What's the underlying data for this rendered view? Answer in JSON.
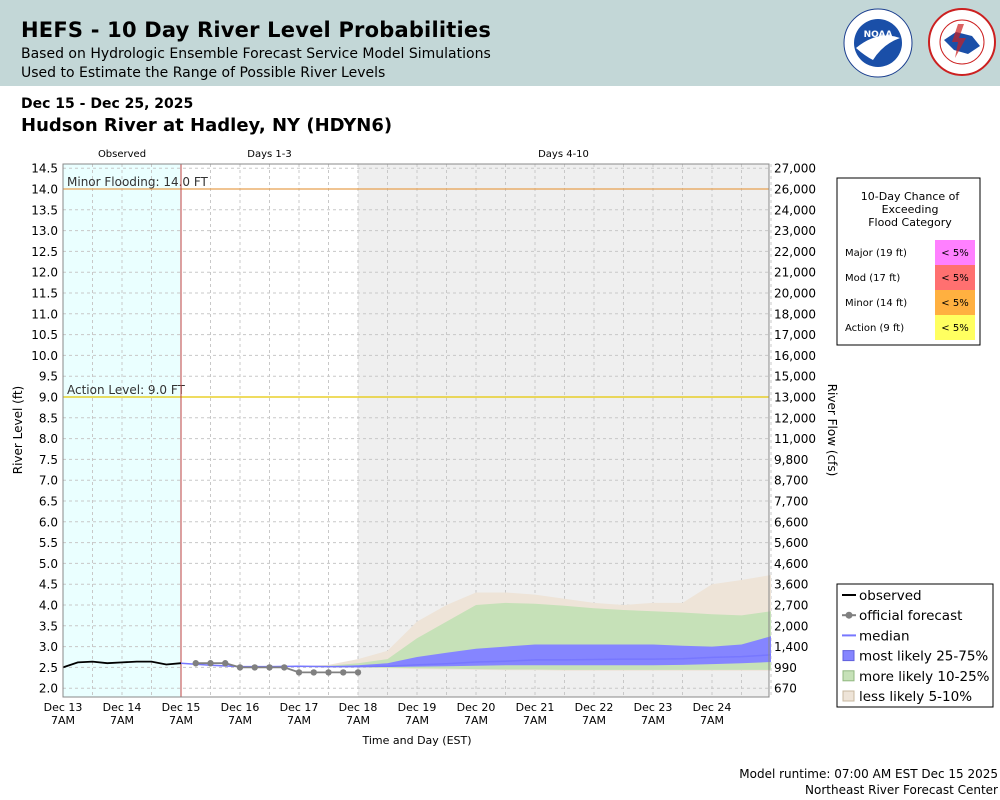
{
  "header": {
    "title": "HEFS - 10 Day River Level Probabilities",
    "subtitle1": "Based on Hydrologic Ensemble Forecast Service Model Simulations",
    "subtitle2": "Used to Estimate the Range of Possible River Levels",
    "logos": [
      "noaa-logo",
      "nws-logo"
    ]
  },
  "date_range": "Dec 15 - Dec 25, 2025",
  "station": "Hudson River at Hadley, NY (HDYN6)",
  "footer": {
    "runtime": "Model runtime: 07:00 AM EST Dec 15 2025",
    "center": "Northeast River Forecast Center"
  },
  "colors": {
    "observed_bg": "#eaffff",
    "days410_bg": "#efefef",
    "less_likely": "#eee4d8",
    "more_likely": "#c6e1b8",
    "most_likely": "#8585ff",
    "median": "#7777ff",
    "observed": "#000000",
    "official": "#808080",
    "minor_line": "#e8a050",
    "action_line": "#e5c800",
    "now_line": "#c04040",
    "major": "#ff80ff",
    "moderate": "#ff7070",
    "minor": "#ffb040",
    "action": "#ffff60"
  },
  "chart_data": {
    "type": "area",
    "ylabel": "River Level (ft)",
    "y2label": "River Flow (cfs)",
    "xlabel": "Time and Day (EST)",
    "ylim": [
      1.8,
      14.5
    ],
    "yticks": [
      "14.5",
      "14.0",
      "13.5",
      "13.0",
      "12.5",
      "12.0",
      "11.5",
      "11.0",
      "10.5",
      "10.0",
      "9.5",
      "9.0",
      "8.5",
      "8.0",
      "7.5",
      "7.0",
      "6.5",
      "6.0",
      "5.5",
      "5.0",
      "4.5",
      "4.0",
      "3.5",
      "3.0",
      "2.5",
      "2.0"
    ],
    "y2ticks": [
      {
        "label": "27,000",
        "stage": 14.5
      },
      {
        "label": "26,000",
        "stage": 14.0
      },
      {
        "label": "24,000",
        "stage": 13.5
      },
      {
        "label": "23,000",
        "stage": 13.0
      },
      {
        "label": "22,000",
        "stage": 12.5
      },
      {
        "label": "21,000",
        "stage": 12.0
      },
      {
        "label": "20,000",
        "stage": 11.5
      },
      {
        "label": "18,000",
        "stage": 11.0
      },
      {
        "label": "17,000",
        "stage": 10.5
      },
      {
        "label": "16,000",
        "stage": 10.0
      },
      {
        "label": "15,000",
        "stage": 9.5
      },
      {
        "label": "13,000",
        "stage": 9.0
      },
      {
        "label": "12,000",
        "stage": 8.5
      },
      {
        "label": "11,000",
        "stage": 8.0
      },
      {
        "label": "9,800",
        "stage": 7.5
      },
      {
        "label": "8,700",
        "stage": 7.0
      },
      {
        "label": "7,700",
        "stage": 6.5
      },
      {
        "label": "6,600",
        "stage": 6.0
      },
      {
        "label": "5,600",
        "stage": 5.5
      },
      {
        "label": "4,600",
        "stage": 5.0
      },
      {
        "label": "3,600",
        "stage": 4.5
      },
      {
        "label": "2,700",
        "stage": 4.0
      },
      {
        "label": "2,000",
        "stage": 3.5
      },
      {
        "label": "1,400",
        "stage": 3.0
      },
      {
        "label": "990",
        "stage": 2.5
      },
      {
        "label": "670",
        "stage": 2.0
      }
    ],
    "x_range": [
      -2,
      10
    ],
    "xticks": [
      {
        "day": "Dec 13",
        "time": "7AM",
        "x": -2
      },
      {
        "day": "Dec 14",
        "time": "7AM",
        "x": -1
      },
      {
        "day": "Dec 15",
        "time": "7AM",
        "x": 0
      },
      {
        "day": "Dec 16",
        "time": "7AM",
        "x": 1
      },
      {
        "day": "Dec 17",
        "time": "7AM",
        "x": 2
      },
      {
        "day": "Dec 18",
        "time": "7AM",
        "x": 3
      },
      {
        "day": "Dec 19",
        "time": "7AM",
        "x": 4
      },
      {
        "day": "Dec 20",
        "time": "7AM",
        "x": 5
      },
      {
        "day": "Dec 21",
        "time": "7AM",
        "x": 6
      },
      {
        "day": "Dec 22",
        "time": "7AM",
        "x": 7
      },
      {
        "day": "Dec 23",
        "time": "7AM",
        "x": 8
      },
      {
        "day": "Dec 24",
        "time": "7AM",
        "x": 9
      }
    ],
    "periods": [
      {
        "label": "Observed",
        "start": -2,
        "end": 0
      },
      {
        "label": "Days 1-3",
        "start": 0,
        "end": 3
      },
      {
        "label": "Days 4-10",
        "start": 3,
        "end": 10
      }
    ],
    "thresholds": [
      {
        "label": "Minor Flooding: 14.0 FT",
        "value": 14.0,
        "kind": "minor"
      },
      {
        "label": "Action Level: 9.0 FT",
        "value": 9.0,
        "kind": "action"
      }
    ],
    "series": [
      {
        "name": "observed",
        "x": [
          -2,
          -1.75,
          -1.5,
          -1.25,
          -1,
          -0.75,
          -0.5,
          -0.25,
          0
        ],
        "y": [
          2.5,
          2.62,
          2.64,
          2.6,
          2.62,
          2.64,
          2.64,
          2.57,
          2.6
        ]
      },
      {
        "name": "official forecast",
        "x": [
          0.25,
          0.5,
          0.75,
          1,
          1.25,
          1.5,
          1.75,
          2,
          2.25,
          2.5,
          2.75,
          3
        ],
        "y": [
          2.6,
          2.6,
          2.6,
          2.5,
          2.5,
          2.5,
          2.5,
          2.38,
          2.38,
          2.38,
          2.38,
          2.38
        ]
      },
      {
        "name": "median",
        "x": [
          0,
          0.5,
          1,
          1.5,
          2,
          2.5,
          3,
          3.5,
          4,
          4.5,
          5,
          5.5,
          6,
          6.5,
          7,
          7.5,
          8,
          8.5,
          9,
          9.5,
          10
        ],
        "y": [
          2.6,
          2.55,
          2.52,
          2.52,
          2.53,
          2.52,
          2.52,
          2.53,
          2.56,
          2.59,
          2.63,
          2.65,
          2.68,
          2.68,
          2.69,
          2.7,
          2.7,
          2.71,
          2.74,
          2.76,
          2.8
        ]
      }
    ],
    "bands": {
      "x": [
        0,
        0.5,
        1,
        1.5,
        2,
        2.5,
        3,
        3.5,
        4,
        4.5,
        5,
        5.5,
        6,
        6.5,
        7,
        7.5,
        8,
        8.5,
        9,
        9.5,
        10
      ],
      "less_likely_5_10": {
        "low": [
          2.6,
          2.55,
          2.52,
          2.52,
          2.53,
          2.5,
          2.5,
          2.48,
          2.46,
          2.45,
          2.44,
          2.43,
          2.43,
          2.42,
          2.42,
          2.42,
          2.42,
          2.42,
          2.42,
          2.42,
          2.42
        ],
        "high": [
          2.6,
          2.55,
          2.52,
          2.52,
          2.53,
          2.56,
          2.7,
          2.9,
          3.6,
          4.0,
          4.3,
          4.3,
          4.25,
          4.15,
          4.05,
          4.0,
          4.05,
          4.05,
          4.5,
          4.6,
          4.72
        ]
      },
      "more_likely_10_25": {
        "low": [
          2.6,
          2.55,
          2.52,
          2.52,
          2.53,
          2.5,
          2.5,
          2.49,
          2.48,
          2.47,
          2.46,
          2.45,
          2.45,
          2.44,
          2.44,
          2.44,
          2.44,
          2.44,
          2.44,
          2.44,
          2.44
        ],
        "high": [
          2.6,
          2.55,
          2.52,
          2.52,
          2.53,
          2.54,
          2.6,
          2.7,
          3.2,
          3.6,
          4.0,
          4.05,
          4.03,
          3.98,
          3.92,
          3.88,
          3.85,
          3.82,
          3.78,
          3.75,
          3.85
        ]
      },
      "most_likely_25_75": {
        "low": [
          2.6,
          2.55,
          2.52,
          2.52,
          2.53,
          2.51,
          2.51,
          2.51,
          2.52,
          2.53,
          2.54,
          2.55,
          2.55,
          2.55,
          2.55,
          2.55,
          2.55,
          2.56,
          2.58,
          2.6,
          2.63
        ],
        "high": [
          2.6,
          2.55,
          2.52,
          2.52,
          2.53,
          2.53,
          2.55,
          2.6,
          2.75,
          2.85,
          2.95,
          3.0,
          3.05,
          3.05,
          3.05,
          3.05,
          3.05,
          3.02,
          3.0,
          3.05,
          3.25
        ]
      }
    },
    "legend": [
      {
        "label": "observed",
        "kind": "line-black"
      },
      {
        "label": "official forecast",
        "kind": "line-dot"
      },
      {
        "label": "median",
        "kind": "line-blue"
      },
      {
        "label": "most likely 25-75%",
        "kind": "box-blue"
      },
      {
        "label": "more likely 10-25%",
        "kind": "box-green"
      },
      {
        "label": "less likely 5-10%",
        "kind": "box-tan"
      }
    ],
    "legend_position": "bottom-right",
    "flood_chance": {
      "title": [
        "10-Day Chance of",
        "Exceeding",
        "Flood Category"
      ],
      "rows": [
        {
          "label": "Major (19 ft)",
          "value": "< 5%",
          "kind": "major"
        },
        {
          "label": "Mod (17 ft)",
          "value": "< 5%",
          "kind": "moderate"
        },
        {
          "label": "Minor (14 ft)",
          "value": "< 5%",
          "kind": "minor"
        },
        {
          "label": "Action (9 ft)",
          "value": "< 5%",
          "kind": "action"
        }
      ]
    },
    "grid": true
  }
}
